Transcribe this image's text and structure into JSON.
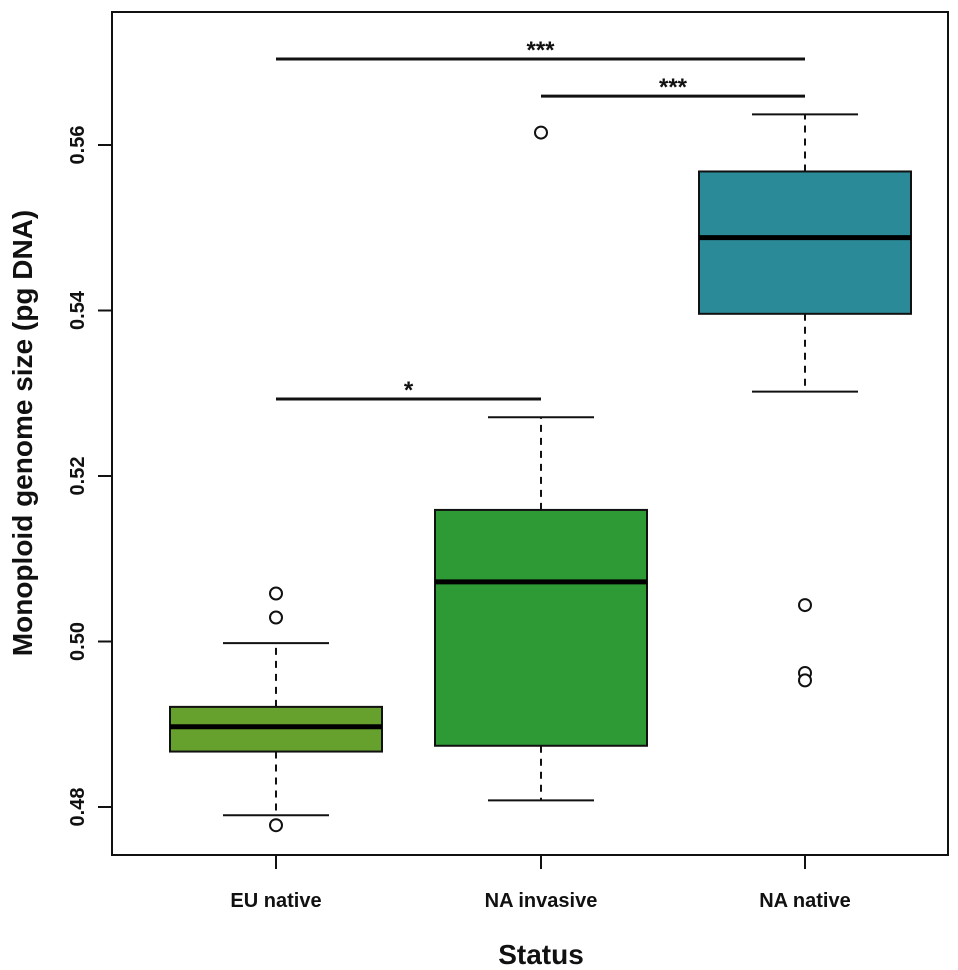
{
  "chart_data": {
    "type": "boxplot",
    "xlabel": "Status",
    "ylabel": "Monoploid genome size (pg DNA)",
    "ylim": [
      0.474,
      0.576
    ],
    "yticks": [
      0.48,
      0.5,
      0.52,
      0.54,
      0.56
    ],
    "ytick_labels": [
      "0.48",
      "0.50",
      "0.52",
      "0.54",
      "0.56"
    ],
    "categories": [
      "EU native",
      "NA invasive",
      "NA native"
    ],
    "boxes": [
      {
        "category": "EU native",
        "whisker_low": 0.479,
        "q1": 0.4867,
        "median": 0.4897,
        "q3": 0.4921,
        "whisker_high": 0.4998,
        "outliers": [
          0.5058,
          0.5029,
          0.4778
        ],
        "color": "#66a12e"
      },
      {
        "category": "NA invasive",
        "whisker_low": 0.4808,
        "q1": 0.4874,
        "median": 0.5072,
        "q3": 0.5159,
        "whisker_high": 0.5271,
        "outliers": [
          0.5615
        ],
        "color": "#2e9a36"
      },
      {
        "category": "NA native",
        "whisker_low": 0.5302,
        "q1": 0.5396,
        "median": 0.5488,
        "q3": 0.5568,
        "whisker_high": 0.5637,
        "outliers": [
          0.5044,
          0.4962,
          0.4953
        ],
        "color": "#2b8a98"
      }
    ],
    "significance": [
      {
        "from": "EU native",
        "to": "NA native",
        "y": 0.5704,
        "label": "***"
      },
      {
        "from": "NA invasive",
        "to": "NA native",
        "y": 0.5659,
        "label": "***"
      },
      {
        "from": "EU native",
        "to": "NA invasive",
        "y": 0.5293,
        "label": "*"
      }
    ],
    "grid": false,
    "legend": "none"
  }
}
